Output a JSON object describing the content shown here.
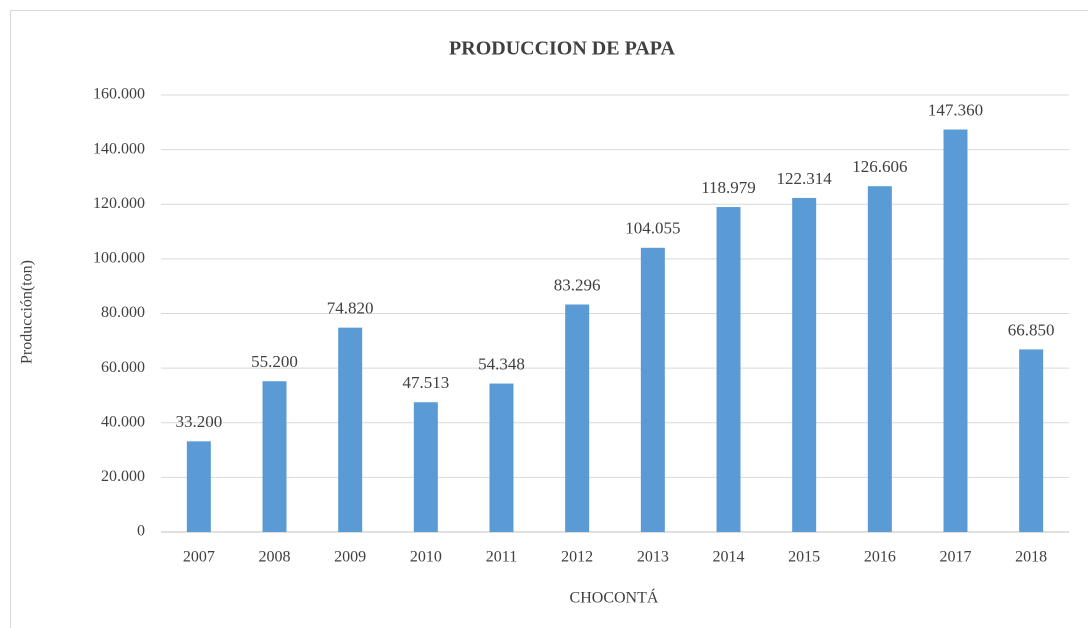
{
  "chart_data": {
    "type": "bar",
    "title": "PRODUCCION DE PAPA",
    "x_label": "CHOCONTÁ",
    "y_label": "Producción(ton)",
    "categories": [
      "2007",
      "2008",
      "2009",
      "2010",
      "2011",
      "2012",
      "2013",
      "2014",
      "2015",
      "2016",
      "2017",
      "2018"
    ],
    "values": [
      33200,
      55200,
      74820,
      47513,
      54348,
      83296,
      104055,
      118979,
      122314,
      126606,
      147360,
      66850
    ],
    "value_labels": [
      "33.200",
      "55.200",
      "74.820",
      "47.513",
      "54.348",
      "83.296",
      "104.055",
      "118.979",
      "122.314",
      "126.606",
      "147.360",
      "66.850"
    ],
    "color": "#5b9bd5",
    "ylim": [
      0,
      160000
    ],
    "yticks": [
      0,
      {
        "value": 20000,
        "label": "20.000"
      },
      {
        "value": 40000,
        "label": "40.000"
      },
      {
        "value": 60000,
        "label": "60.000"
      },
      {
        "value": 80000,
        "label": "80.000"
      },
      {
        "value": 100000,
        "label": "100.000"
      },
      {
        "value": 120000,
        "label": "120.000"
      },
      {
        "value": 140000,
        "label": "140.000"
      },
      {
        "value": 160000,
        "label": "160.000"
      }
    ],
    "grid": true
  }
}
